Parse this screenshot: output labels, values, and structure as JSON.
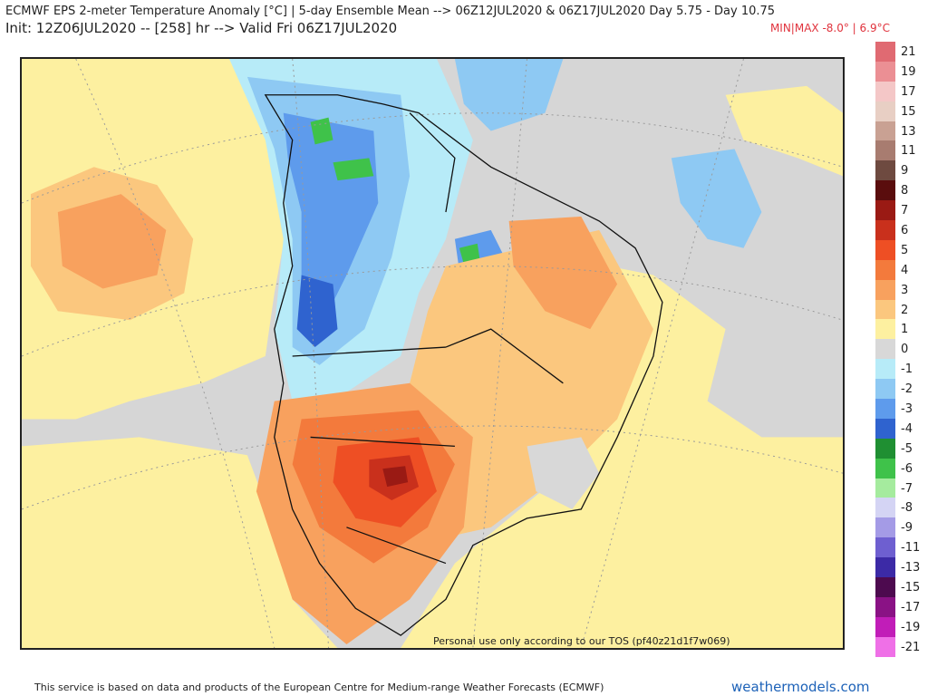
{
  "header": {
    "title_line1": "ECMWF EPS 2-meter Temperature Anomaly [°C] | 5-day Ensemble Mean --> 06Z12JUL2020 & 06Z17JUL2020   Day 5.75 - Day 10.75",
    "title_line2": "Init: 12Z06JUL2020 -- [258] hr --> Valid Fri 06Z17JUL2020",
    "minmax": "MIN|MAX -8.0° | 6.9°C"
  },
  "map": {
    "watermark": "Personal use only according to our TOS (pf40z21d1f7w069)"
  },
  "legend": {
    "items": [
      {
        "label": "21",
        "color": "#e06a72"
      },
      {
        "label": "19",
        "color": "#eb8f94"
      },
      {
        "label": "17",
        "color": "#f4c7c7"
      },
      {
        "label": "15",
        "color": "#e8cfc4"
      },
      {
        "label": "13",
        "color": "#c9a193"
      },
      {
        "label": "11",
        "color": "#a87c70"
      },
      {
        "label": "9",
        "color": "#6e4a40"
      },
      {
        "label": "8",
        "color": "#5a0d0d"
      },
      {
        "label": "7",
        "color": "#9a1a14"
      },
      {
        "label": "6",
        "color": "#c9301c"
      },
      {
        "label": "5",
        "color": "#ee4f24"
      },
      {
        "label": "4",
        "color": "#f37a3c"
      },
      {
        "label": "3",
        "color": "#f8a15e"
      },
      {
        "label": "2",
        "color": "#fbc77e"
      },
      {
        "label": "1",
        "color": "#fdf0a0"
      },
      {
        "label": "0",
        "color": "#d8d8d8"
      },
      {
        "label": "-1",
        "color": "#b7ebf8"
      },
      {
        "label": "-2",
        "color": "#8ec9f3"
      },
      {
        "label": "-3",
        "color": "#5e9bec"
      },
      {
        "label": "-4",
        "color": "#2f63cf"
      },
      {
        "label": "-5",
        "color": "#1f8f32"
      },
      {
        "label": "-6",
        "color": "#3fc24a"
      },
      {
        "label": "-7",
        "color": "#a5eb9e"
      },
      {
        "label": "-8",
        "color": "#d4d4f4"
      },
      {
        "label": "-9",
        "color": "#a49be6"
      },
      {
        "label": "-11",
        "color": "#6e5fd0"
      },
      {
        "label": "-13",
        "color": "#3c2aa6"
      },
      {
        "label": "-15",
        "color": "#4d0a4f"
      },
      {
        "label": "-17",
        "color": "#8a1285"
      },
      {
        "label": "-19",
        "color": "#c11db8"
      },
      {
        "label": "-21",
        "color": "#ef70e7"
      }
    ]
  },
  "footer": {
    "attribution": "This service is based on data and products of the European Centre for Medium-range Weather Forecasts (ECMWF)",
    "brand": "weathermodels.com"
  }
}
